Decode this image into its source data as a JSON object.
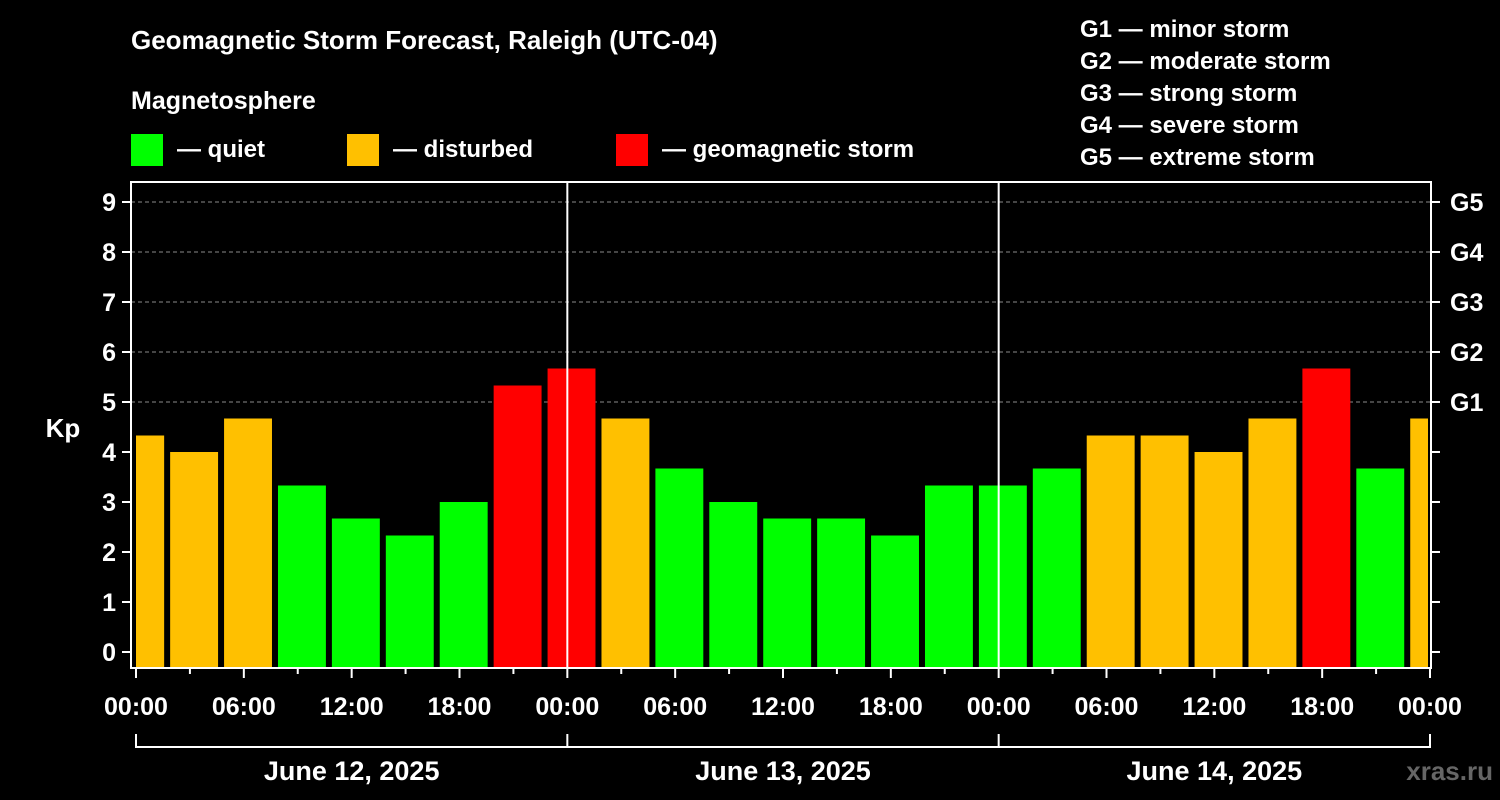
{
  "header": {
    "title": "Geomagnetic Storm Forecast, Raleigh (UTC-04)",
    "subtitle": "Magnetosphere",
    "legend": [
      {
        "label": "— quiet",
        "color": "#00ff00"
      },
      {
        "label": "— disturbed",
        "color": "#ffc000"
      },
      {
        "label": "— geomagnetic storm",
        "color": "#ff0000"
      }
    ],
    "storm_levels": [
      "G1 — minor storm",
      "G2 — moderate storm",
      "G3 — strong storm",
      "G4 — severe storm",
      "G5 — extreme storm"
    ]
  },
  "watermark": "xras.ru",
  "chart_data": {
    "type": "bar",
    "title": "Geomagnetic Storm Forecast, Raleigh (UTC-04)",
    "ylabel": "Kp",
    "ylim": [
      0,
      9
    ],
    "yticks": [
      "0",
      "1",
      "2",
      "3",
      "4",
      "5",
      "6",
      "7",
      "8",
      "9"
    ],
    "right_axis_labels": [
      {
        "kp": 5,
        "label": "G1"
      },
      {
        "kp": 6,
        "label": "G2"
      },
      {
        "kp": 7,
        "label": "G3"
      },
      {
        "kp": 8,
        "label": "G4"
      },
      {
        "kp": 9,
        "label": "G5"
      }
    ],
    "x_tick_labels": [
      "00:00",
      "06:00",
      "12:00",
      "18:00",
      "00:00",
      "06:00",
      "12:00",
      "18:00",
      "00:00",
      "06:00",
      "12:00",
      "18:00",
      "00:00"
    ],
    "days": [
      "June 12, 2025",
      "June 13, 2025",
      "June 14, 2025"
    ],
    "colors": {
      "quiet": "#00ff00",
      "disturbed": "#ffc000",
      "storm": "#ff0000"
    },
    "bars": [
      {
        "start_hour": 0,
        "end_hour": 1.9,
        "kp": 4.33,
        "level": "disturbed"
      },
      {
        "start_hour": 1.9,
        "kp": 4.0,
        "level": "disturbed"
      },
      {
        "start_hour": 4.9,
        "kp": 4.67,
        "level": "disturbed"
      },
      {
        "start_hour": 7.9,
        "kp": 3.33,
        "level": "quiet"
      },
      {
        "start_hour": 10.9,
        "kp": 2.67,
        "level": "quiet"
      },
      {
        "start_hour": 13.9,
        "kp": 2.33,
        "level": "quiet"
      },
      {
        "start_hour": 16.9,
        "kp": 3.0,
        "level": "quiet"
      },
      {
        "start_hour": 19.9,
        "kp": 5.33,
        "level": "storm"
      },
      {
        "start_hour": 22.9,
        "kp": 5.67,
        "level": "storm"
      },
      {
        "start_hour": 25.9,
        "kp": 4.67,
        "level": "disturbed"
      },
      {
        "start_hour": 28.9,
        "kp": 3.67,
        "level": "quiet"
      },
      {
        "start_hour": 31.9,
        "kp": 3.0,
        "level": "quiet"
      },
      {
        "start_hour": 34.9,
        "kp": 2.67,
        "level": "quiet"
      },
      {
        "start_hour": 37.9,
        "kp": 2.67,
        "level": "quiet"
      },
      {
        "start_hour": 40.9,
        "kp": 2.33,
        "level": "quiet"
      },
      {
        "start_hour": 43.9,
        "kp": 3.33,
        "level": "quiet"
      },
      {
        "start_hour": 46.9,
        "kp": 3.33,
        "level": "quiet"
      },
      {
        "start_hour": 49.9,
        "kp": 3.67,
        "level": "quiet"
      },
      {
        "start_hour": 52.9,
        "kp": 4.33,
        "level": "disturbed"
      },
      {
        "start_hour": 55.9,
        "kp": 4.33,
        "level": "disturbed"
      },
      {
        "start_hour": 58.9,
        "kp": 4.0,
        "level": "disturbed"
      },
      {
        "start_hour": 61.9,
        "kp": 4.67,
        "level": "disturbed"
      },
      {
        "start_hour": 64.9,
        "kp": 5.67,
        "level": "storm"
      },
      {
        "start_hour": 67.9,
        "kp": 3.67,
        "level": "quiet"
      },
      {
        "start_hour": 70.9,
        "end_hour": 72,
        "kp": 4.67,
        "level": "disturbed"
      }
    ]
  }
}
